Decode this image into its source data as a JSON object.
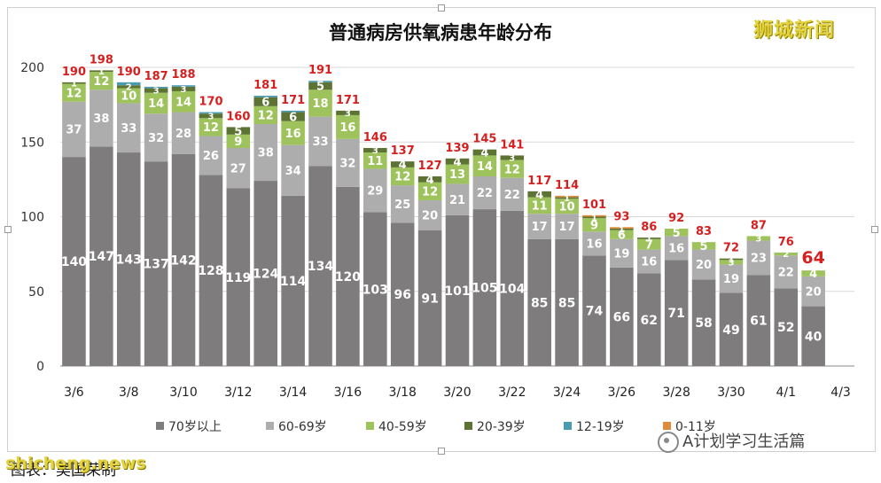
{
  "logo_text": "狮城新闻",
  "wechat_label": "A计划学习生活篇",
  "source_note": "图表：吴国荣制",
  "watermark": "shicheng.news",
  "colors": {
    "s70": "#7f7c7d",
    "s60": "#aeadae",
    "s40": "#9ec35c",
    "s20": "#5c7334",
    "s12": "#4a9ab0",
    "s0": "#e08a3c",
    "total_label": "#d61f1f",
    "inner_label": "#ffffff"
  },
  "chart_data": {
    "type": "bar",
    "stacked": true,
    "title": "普通病房供氧病患年龄分布",
    "ylim": [
      0,
      200
    ],
    "yticks": [
      "0",
      "50",
      "100",
      "150",
      "200"
    ],
    "grid": true,
    "legend_position": "bottom",
    "categories": [
      "3/6",
      "3/7",
      "3/8",
      "3/9",
      "3/10",
      "3/11",
      "3/12",
      "3/13",
      "3/14",
      "3/15",
      "3/16",
      "3/17",
      "3/18",
      "3/19",
      "3/20",
      "3/21",
      "3/22",
      "3/23",
      "3/24",
      "3/25",
      "3/26",
      "3/27",
      "3/28",
      "3/29",
      "3/30",
      "3/31",
      "4/1",
      "4/2",
      "4/3"
    ],
    "x_tick_labels": [
      "3/6",
      "3/8",
      "3/10",
      "3/12",
      "3/14",
      "3/16",
      "3/18",
      "3/20",
      "3/22",
      "3/24",
      "3/26",
      "3/28",
      "3/30",
      "4/1",
      "4/3"
    ],
    "series": [
      {
        "name": "70岁以上",
        "color_key": "s70",
        "values": [
          140,
          147,
          143,
          137,
          142,
          128,
          119,
          124,
          114,
          134,
          120,
          103,
          96,
          91,
          101,
          105,
          104,
          85,
          85,
          74,
          66,
          62,
          71,
          58,
          49,
          61,
          52,
          40,
          null
        ]
      },
      {
        "name": "60-69岁",
        "color_key": "s60",
        "values": [
          37,
          38,
          33,
          32,
          28,
          26,
          27,
          38,
          34,
          33,
          32,
          29,
          25,
          20,
          21,
          22,
          22,
          17,
          17,
          16,
          19,
          16,
          16,
          20,
          19,
          23,
          22,
          20,
          null
        ]
      },
      {
        "name": "40-59岁",
        "color_key": "s40",
        "values": [
          12,
          12,
          10,
          14,
          14,
          12,
          9,
          12,
          16,
          18,
          16,
          11,
          12,
          12,
          13,
          14,
          12,
          11,
          10,
          9,
          6,
          7,
          5,
          5,
          3,
          3,
          2,
          4,
          null
        ]
      },
      {
        "name": "20-39岁",
        "color_key": "s20",
        "values": [
          1,
          1,
          2,
          3,
          3,
          3,
          5,
          6,
          6,
          5,
          3,
          3,
          4,
          4,
          4,
          4,
          3,
          4,
          1,
          1,
          1,
          1,
          0,
          0,
          1,
          0,
          0,
          0,
          null
        ]
      },
      {
        "name": "12-19岁",
        "color_key": "s12",
        "values": [
          0,
          0,
          2,
          1,
          1,
          1,
          0,
          1,
          1,
          1,
          0,
          0,
          0,
          0,
          0,
          0,
          0,
          0,
          0,
          0,
          0,
          0,
          0,
          0,
          0,
          0,
          0,
          0,
          null
        ]
      },
      {
        "name": "0-11岁",
        "color_key": "s0",
        "values": [
          0,
          0,
          0,
          0,
          0,
          0,
          0,
          0,
          0,
          0,
          0,
          0,
          0,
          0,
          0,
          0,
          0,
          0,
          1,
          1,
          1,
          0,
          0,
          0,
          0,
          0,
          0,
          0,
          null
        ]
      }
    ],
    "inner_labels": [
      {
        "series": 0,
        "values": [
          140,
          147,
          143,
          137,
          142,
          128,
          119,
          124,
          114,
          134,
          120,
          103,
          96,
          91,
          101,
          105,
          104,
          85,
          85,
          74,
          66,
          62,
          71,
          58,
          49,
          61,
          52,
          40,
          null
        ]
      },
      {
        "series": 1,
        "values": [
          37,
          38,
          33,
          32,
          28,
          26,
          27,
          38,
          34,
          33,
          32,
          29,
          25,
          20,
          21,
          22,
          22,
          17,
          17,
          16,
          19,
          16,
          16,
          20,
          19,
          23,
          22,
          20,
          null
        ]
      },
      {
        "series": 2,
        "values": [
          12,
          12,
          10,
          14,
          14,
          12,
          9,
          12,
          16,
          18,
          16,
          11,
          12,
          12,
          13,
          14,
          12,
          11,
          10,
          9,
          6,
          7,
          5,
          5,
          3,
          3,
          2,
          4,
          null
        ]
      },
      {
        "series": 3,
        "values": [
          1,
          1,
          2,
          3,
          3,
          3,
          5,
          6,
          6,
          5,
          3,
          3,
          4,
          4,
          4,
          4,
          3,
          4,
          1,
          1,
          1,
          1,
          null,
          null,
          1,
          null,
          null,
          null,
          null
        ]
      }
    ],
    "totals": [
      190,
      198,
      190,
      187,
      188,
      170,
      160,
      181,
      171,
      191,
      171,
      146,
      137,
      127,
      139,
      145,
      141,
      117,
      114,
      101,
      93,
      86,
      92,
      83,
      72,
      87,
      76,
      64,
      null
    ],
    "highlight_total_index": 27
  }
}
